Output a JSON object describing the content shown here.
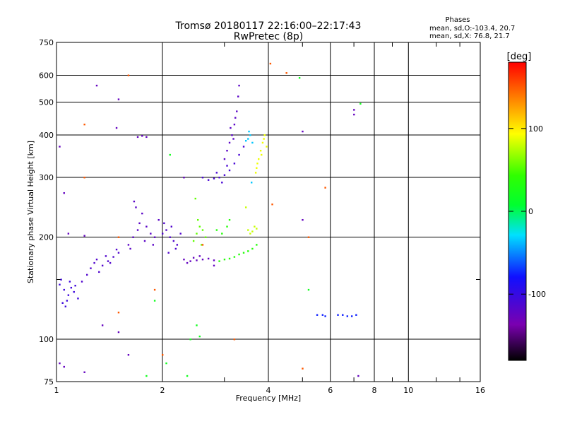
{
  "chart_data": {
    "type": "scatter",
    "title": "Tromsø 20180117 22:16:00–22:17:43",
    "subtitle": "RwPretec (8p)",
    "stats": {
      "heading": "Phases",
      "line1": "mean, sd,O:-103.4, 20.7",
      "line2": "mean, sd,X:  76.8, 21.7"
    },
    "xlabel": "Frequency [MHz]",
    "ylabel": "Stationary phase Virtual Height [km]",
    "x_scale": "log",
    "y_scale": "log",
    "xlim": [
      1,
      16
    ],
    "ylim": [
      75,
      750
    ],
    "x_ticks": [
      1,
      2,
      4,
      6,
      8,
      10,
      16
    ],
    "x_tick_labels": [
      "1",
      "2",
      "4",
      "6",
      "8",
      "10",
      "16"
    ],
    "x_minor_ticks": [
      3,
      5,
      7,
      9,
      12,
      14
    ],
    "y_ticks": [
      75,
      100,
      200,
      300,
      400,
      500,
      600,
      750
    ],
    "y_tick_labels": [
      "75",
      "100",
      "200",
      "300",
      "400",
      "500",
      "600",
      "750"
    ],
    "y_minor_ticks": [
      150
    ],
    "grid": true,
    "colorbar": {
      "label": "[deg]",
      "min": -180,
      "max": 180,
      "ticks": [
        100,
        0,
        -100
      ],
      "tick_labels": [
        "100",
        "0",
        "-100"
      ]
    },
    "series": [
      {
        "color_value": -105,
        "points": [
          [
            1.02,
            145
          ],
          [
            1.05,
            140
          ],
          [
            1.08,
            135
          ],
          [
            1.1,
            142
          ],
          [
            1.04,
            128
          ],
          [
            1.07,
            130
          ],
          [
            1.12,
            138
          ],
          [
            1.15,
            132
          ],
          [
            1.03,
            150
          ],
          [
            1.09,
            148
          ],
          [
            1.13,
            144
          ],
          [
            1.06,
            125
          ]
        ]
      },
      {
        "color_value": -115,
        "points": [
          [
            1.18,
            148
          ],
          [
            1.22,
            155
          ],
          [
            1.25,
            162
          ],
          [
            1.28,
            168
          ],
          [
            1.32,
            158
          ],
          [
            1.35,
            165
          ],
          [
            1.4,
            170
          ],
          [
            1.45,
            175
          ],
          [
            1.5,
            180
          ],
          [
            1.38,
            176
          ],
          [
            1.3,
            172
          ],
          [
            1.42,
            168
          ],
          [
            1.48,
            184
          ]
        ]
      },
      {
        "color_value": -120,
        "points": [
          [
            1.6,
            190
          ],
          [
            1.65,
            200
          ],
          [
            1.7,
            210
          ],
          [
            1.72,
            220
          ],
          [
            1.75,
            235
          ],
          [
            1.68,
            245
          ],
          [
            1.8,
            215
          ],
          [
            1.85,
            205
          ],
          [
            1.9,
            200
          ],
          [
            1.78,
            195
          ],
          [
            1.62,
            185
          ],
          [
            1.66,
            255
          ],
          [
            1.95,
            225
          ],
          [
            1.88,
            190
          ]
        ]
      },
      {
        "color_value": -115,
        "points": [
          [
            2.0,
            205
          ],
          [
            2.05,
            210
          ],
          [
            2.1,
            200
          ],
          [
            2.15,
            195
          ],
          [
            2.2,
            190
          ],
          [
            2.25,
            205
          ],
          [
            2.02,
            220
          ],
          [
            2.08,
            180
          ],
          [
            2.12,
            215
          ],
          [
            2.18,
            185
          ]
        ]
      },
      {
        "color_value": -125,
        "points": [
          [
            2.3,
            172
          ],
          [
            2.4,
            170
          ],
          [
            2.5,
            171
          ],
          [
            2.6,
            172
          ],
          [
            2.7,
            173
          ],
          [
            2.8,
            171
          ],
          [
            2.45,
            174
          ],
          [
            2.55,
            176
          ],
          [
            2.35,
            168
          ]
        ]
      },
      {
        "color_value": -110,
        "points": [
          [
            2.6,
            300
          ],
          [
            2.7,
            295
          ],
          [
            2.8,
            298
          ],
          [
            2.9,
            300
          ],
          [
            3.0,
            305
          ],
          [
            3.1,
            315
          ],
          [
            3.2,
            330
          ],
          [
            3.3,
            350
          ],
          [
            3.4,
            370
          ],
          [
            2.95,
            290
          ],
          [
            2.85,
            310
          ],
          [
            3.05,
            325
          ]
        ]
      },
      {
        "color_value": -120,
        "points": [
          [
            3.0,
            340
          ],
          [
            3.05,
            360
          ],
          [
            3.1,
            380
          ],
          [
            3.15,
            400
          ],
          [
            3.2,
            430
          ],
          [
            3.25,
            470
          ],
          [
            3.28,
            520
          ],
          [
            3.3,
            560
          ],
          [
            3.22,
            450
          ],
          [
            3.12,
            420
          ],
          [
            3.18,
            390
          ]
        ]
      },
      {
        "color_value": 55,
        "points": [
          [
            2.5,
            205
          ],
          [
            2.55,
            215
          ],
          [
            2.6,
            210
          ],
          [
            2.65,
            200
          ],
          [
            2.45,
            195
          ],
          [
            2.52,
            225
          ],
          [
            2.58,
            190
          ],
          [
            2.48,
            260
          ]
        ]
      },
      {
        "color_value": 35,
        "points": [
          [
            2.9,
            170
          ],
          [
            3.0,
            172
          ],
          [
            3.1,
            173
          ],
          [
            3.2,
            175
          ],
          [
            3.3,
            178
          ],
          [
            3.4,
            180
          ],
          [
            3.5,
            182
          ],
          [
            3.6,
            185
          ],
          [
            3.7,
            190
          ],
          [
            2.95,
            205
          ],
          [
            3.05,
            215
          ],
          [
            3.1,
            225
          ],
          [
            2.85,
            210
          ]
        ]
      },
      {
        "color_value": 80,
        "points": [
          [
            3.5,
            210
          ],
          [
            3.6,
            208
          ],
          [
            3.7,
            212
          ],
          [
            3.45,
            245
          ],
          [
            3.55,
            205
          ],
          [
            3.65,
            215
          ]
        ]
      },
      {
        "color_value": 90,
        "points": [
          [
            3.7,
            320
          ],
          [
            3.75,
            340
          ],
          [
            3.8,
            360
          ],
          [
            3.85,
            380
          ],
          [
            3.9,
            400
          ],
          [
            3.72,
            330
          ],
          [
            3.82,
            350
          ],
          [
            3.95,
            370
          ],
          [
            3.68,
            310
          ],
          [
            3.88,
            390
          ]
        ]
      },
      {
        "color_value": -35,
        "points": [
          [
            3.5,
            390
          ],
          [
            3.55,
            400
          ],
          [
            3.6,
            380
          ],
          [
            3.45,
            385
          ],
          [
            3.52,
            410
          ],
          [
            3.58,
            290
          ]
        ]
      },
      {
        "color_value": -75,
        "points": [
          [
            5.5,
            118
          ],
          [
            5.7,
            118
          ],
          [
            5.8,
            117
          ],
          [
            6.3,
            118
          ],
          [
            6.5,
            118
          ],
          [
            6.7,
            117
          ],
          [
            6.9,
            117
          ],
          [
            7.1,
            118
          ]
        ]
      },
      {
        "color_value": -125,
        "points": [
          [
            1.3,
            560
          ],
          [
            1.5,
            510
          ],
          [
            1.48,
            420
          ],
          [
            1.7,
            395
          ],
          [
            1.75,
            398
          ],
          [
            1.8,
            395
          ],
          [
            1.02,
            370
          ],
          [
            1.05,
            270
          ],
          [
            1.08,
            205
          ],
          [
            1.2,
            202
          ],
          [
            1.35,
            110
          ],
          [
            1.5,
            105
          ],
          [
            1.6,
            90
          ],
          [
            1.02,
            85
          ],
          [
            1.05,
            83
          ],
          [
            1.2,
            80
          ],
          [
            2.3,
            300
          ],
          [
            7.0,
            460
          ],
          [
            7.0,
            475
          ],
          [
            5.0,
            410
          ],
          [
            5.0,
            225
          ],
          [
            7.2,
            78
          ],
          [
            2.8,
            165
          ]
        ]
      },
      {
        "color_value": 150,
        "points": [
          [
            1.2,
            430
          ],
          [
            1.6,
            600
          ],
          [
            4.05,
            650
          ],
          [
            4.5,
            610
          ],
          [
            1.2,
            300
          ],
          [
            1.5,
            200
          ],
          [
            2.6,
            190
          ],
          [
            4.1,
            250
          ],
          [
            5.2,
            200
          ],
          [
            5.8,
            280
          ],
          [
            2.0,
            90
          ],
          [
            3.2,
            100
          ],
          [
            1.5,
            120
          ],
          [
            1.9,
            140
          ],
          [
            5.0,
            82
          ]
        ]
      },
      {
        "color_value": 20,
        "points": [
          [
            2.5,
            110
          ],
          [
            2.55,
            102
          ],
          [
            2.4,
            100
          ],
          [
            1.9,
            130
          ],
          [
            2.35,
            78
          ],
          [
            1.8,
            78
          ],
          [
            2.1,
            350
          ],
          [
            4.9,
            590
          ],
          [
            5.2,
            140
          ],
          [
            7.3,
            495
          ],
          [
            2.05,
            85
          ]
        ]
      }
    ]
  }
}
